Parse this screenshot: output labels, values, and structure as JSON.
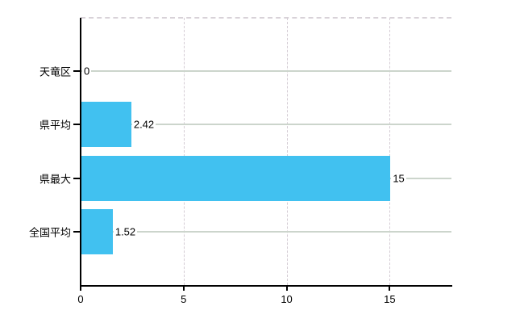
{
  "chart_data": {
    "type": "bar",
    "orientation": "horizontal",
    "title": "",
    "xlabel": "",
    "ylabel": "",
    "categories": [
      "天竜区",
      "県平均",
      "県最大",
      "全国平均"
    ],
    "values": [
      0,
      2.42,
      15,
      1.52
    ],
    "value_labels": [
      "0",
      "2.42",
      "15",
      "1.52"
    ],
    "xlim": [
      0,
      18
    ],
    "xticks": [
      0,
      5,
      10,
      15
    ],
    "xtick_labels": [
      "0",
      "5",
      "10",
      "15"
    ],
    "grid": true,
    "legend": false,
    "colors": {
      "bar": "#41c1f0",
      "axis": "#000000",
      "category_gridline": "#ccd5cc",
      "x_gridline": "#d4ccd4",
      "text": "#000000",
      "background": "#ffffff"
    }
  }
}
